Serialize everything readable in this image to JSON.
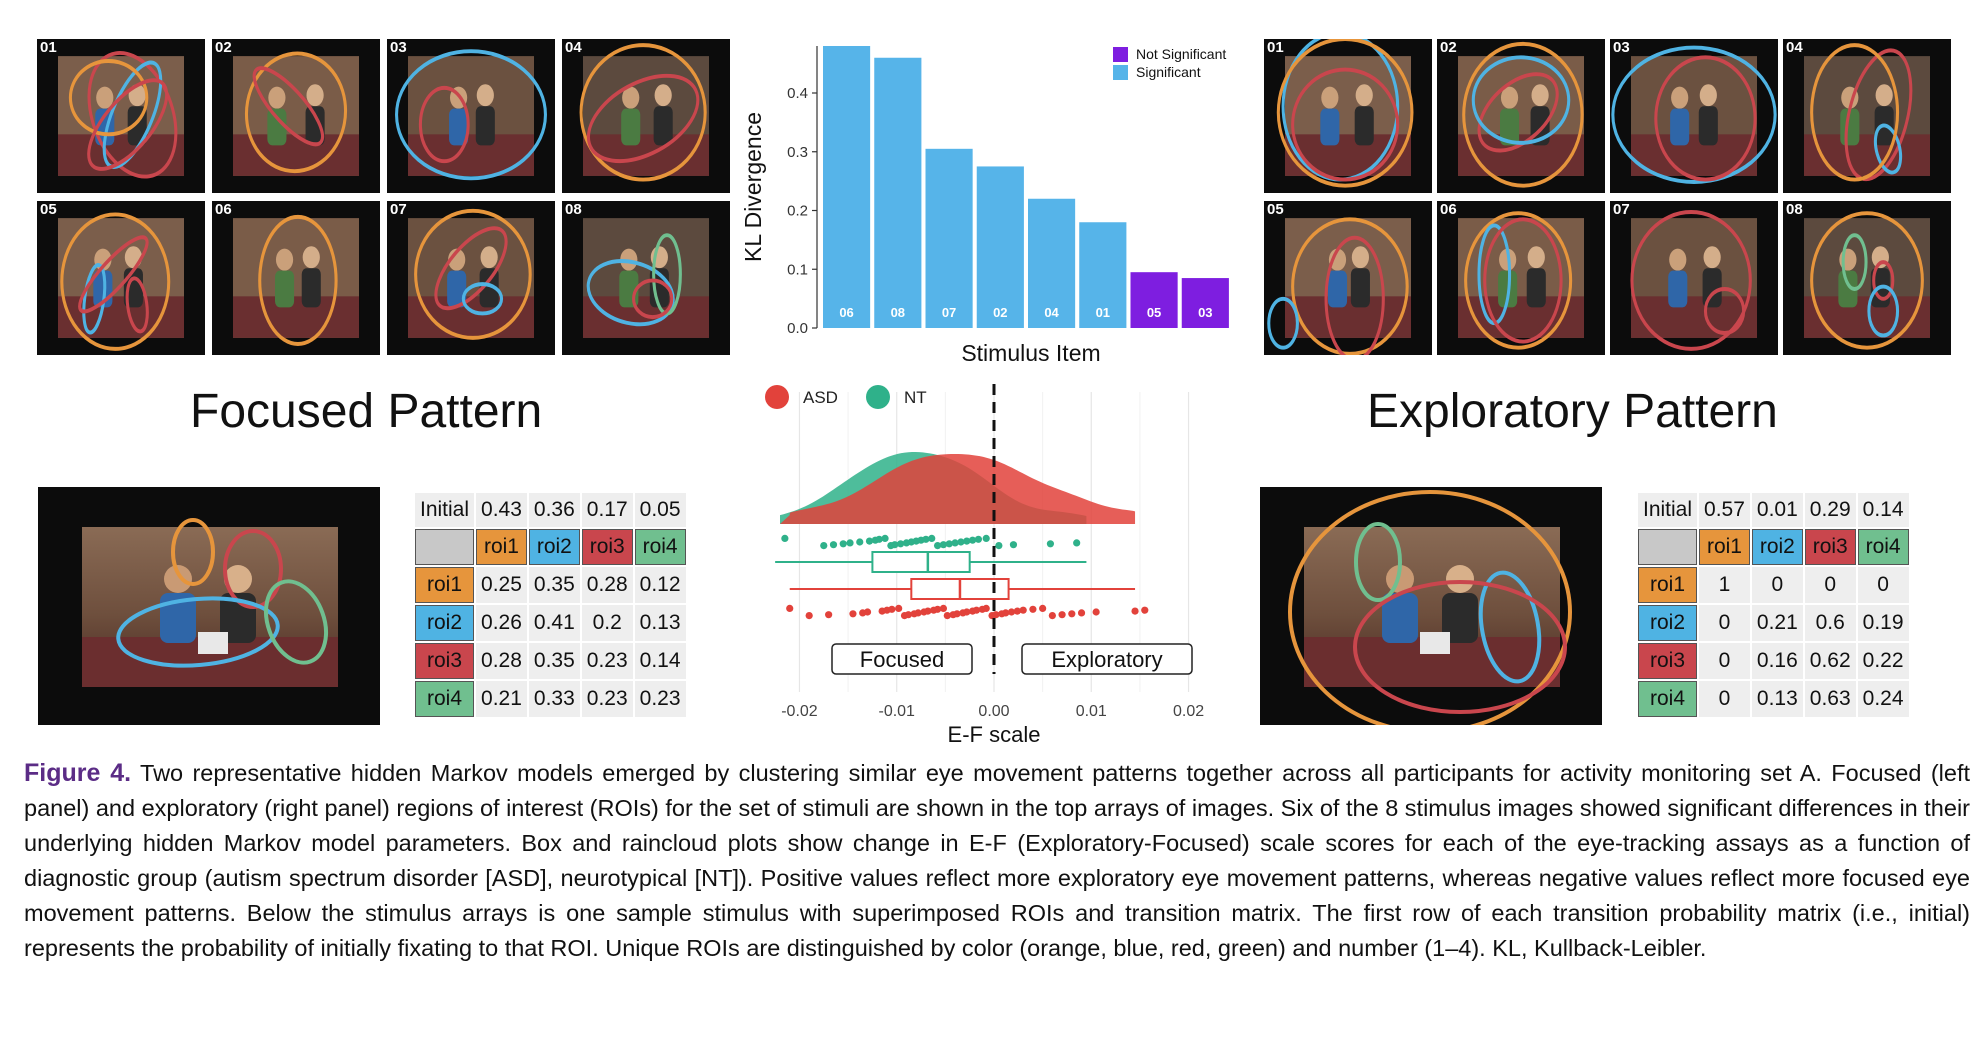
{
  "focused": {
    "title": "Focused Pattern",
    "thumbs": [
      {
        "num": "01",
        "cls": "a"
      },
      {
        "num": "02",
        "cls": "b"
      },
      {
        "num": "03",
        "cls": "c"
      },
      {
        "num": "04",
        "cls": "d"
      },
      {
        "num": "05",
        "cls": "e"
      },
      {
        "num": "06",
        "cls": "f"
      },
      {
        "num": "07",
        "cls": "g"
      },
      {
        "num": "08",
        "cls": "h"
      }
    ],
    "matrix": {
      "initial_label": "Initial",
      "initial": [
        "0.43",
        "0.36",
        "0.17",
        "0.05"
      ],
      "headers": [
        "roi1",
        "roi2",
        "roi3",
        "roi4"
      ],
      "rows": [
        {
          "label": "roi1",
          "values": [
            "0.25",
            "0.35",
            "0.28",
            "0.12"
          ]
        },
        {
          "label": "roi2",
          "values": [
            "0.26",
            "0.41",
            "0.2",
            "0.13"
          ]
        },
        {
          "label": "roi3",
          "values": [
            "0.28",
            "0.35",
            "0.23",
            "0.14"
          ]
        },
        {
          "label": "roi4",
          "values": [
            "0.21",
            "0.33",
            "0.23",
            "0.23"
          ]
        }
      ]
    }
  },
  "exploratory": {
    "title": "Exploratory Pattern",
    "thumbs": [
      {
        "num": "01",
        "cls": "a"
      },
      {
        "num": "02",
        "cls": "b"
      },
      {
        "num": "03",
        "cls": "c"
      },
      {
        "num": "04",
        "cls": "d"
      },
      {
        "num": "05",
        "cls": "e"
      },
      {
        "num": "06",
        "cls": "f"
      },
      {
        "num": "07",
        "cls": "g"
      },
      {
        "num": "08",
        "cls": "h"
      }
    ],
    "matrix": {
      "initial_label": "Initial",
      "initial": [
        "0.57",
        "0.01",
        "0.29",
        "0.14"
      ],
      "headers": [
        "roi1",
        "roi2",
        "roi3",
        "roi4"
      ],
      "rows": [
        {
          "label": "roi1",
          "values": [
            "1",
            "0",
            "0",
            "0"
          ]
        },
        {
          "label": "roi2",
          "values": [
            "0",
            "0.21",
            "0.6",
            "0.19"
          ]
        },
        {
          "label": "roi3",
          "values": [
            "0",
            "0.16",
            "0.62",
            "0.22"
          ]
        },
        {
          "label": "roi4",
          "values": [
            "0",
            "0.13",
            "0.63",
            "0.24"
          ]
        }
      ]
    }
  },
  "colors": {
    "roi1": "#e6953c",
    "roi2": "#4fb3e3",
    "roi3": "#c9464d",
    "roi4": "#70bf8f",
    "significant": "#56b4e9",
    "not_significant": "#7e1ee0",
    "asd": "#e2423b",
    "nt": "#2fb18a"
  },
  "chart_data": [
    {
      "type": "bar",
      "xlabel": "Stimulus Item",
      "ylabel": "KL Divergence",
      "ylim": [
        0,
        0.48
      ],
      "yticks": [
        "0.0",
        "0.1",
        "0.2",
        "0.3",
        "0.4"
      ],
      "yticks_values": [
        0,
        0.1,
        0.2,
        0.3,
        0.4
      ],
      "categories": [
        "06",
        "08",
        "07",
        "02",
        "04",
        "01",
        "05",
        "03"
      ],
      "values": [
        0.48,
        0.46,
        0.305,
        0.275,
        0.22,
        0.18,
        0.095,
        0.085
      ],
      "significant": [
        true,
        true,
        true,
        true,
        true,
        true,
        false,
        false
      ],
      "legend": {
        "position": "top-right",
        "items": [
          "Not Significant",
          "Significant"
        ]
      }
    },
    {
      "type": "raincloud",
      "xlabel": "E-F scale",
      "xlim": [
        -0.022,
        0.022
      ],
      "xticks": [
        "-0.02",
        "-0.01",
        "0.00",
        "0.01",
        "0.02"
      ],
      "xticks_values": [
        -0.02,
        -0.01,
        0,
        0.01,
        0.02
      ],
      "legend": {
        "position": "top-left",
        "items": [
          "ASD",
          "NT"
        ]
      },
      "annotations": [
        "Focused",
        "Exploratory"
      ],
      "groups": [
        {
          "name": "ASD",
          "box": {
            "min": -0.021,
            "q1": -0.0085,
            "median": -0.0035,
            "q3": 0.0015,
            "max": 0.0145
          },
          "points": [
            -0.021,
            -0.019,
            -0.017,
            -0.0145,
            -0.0135,
            -0.013,
            -0.0115,
            -0.011,
            -0.0105,
            -0.0098,
            -0.0092,
            -0.0088,
            -0.0082,
            -0.0078,
            -0.0072,
            -0.0068,
            -0.0062,
            -0.0058,
            -0.0052,
            -0.0048,
            -0.0042,
            -0.0038,
            -0.0032,
            -0.0028,
            -0.0022,
            -0.0018,
            -0.0012,
            -0.0008,
            -0.0002,
            0.0002,
            0.0008,
            0.0012,
            0.0018,
            0.0024,
            0.003,
            0.004,
            0.005,
            0.006,
            0.007,
            0.008,
            0.009,
            0.0105,
            0.0145,
            0.0155
          ]
        },
        {
          "name": "NT",
          "box": {
            "min": -0.0225,
            "q1": -0.0125,
            "median": -0.0068,
            "q3": -0.0025,
            "max": 0.0095
          },
          "points": [
            -0.0215,
            -0.0175,
            -0.0165,
            -0.0155,
            -0.0148,
            -0.0138,
            -0.0128,
            -0.0122,
            -0.0118,
            -0.0112,
            -0.0106,
            -0.0102,
            -0.0096,
            -0.009,
            -0.0085,
            -0.008,
            -0.0075,
            -0.007,
            -0.0064,
            -0.0058,
            -0.0052,
            -0.0046,
            -0.004,
            -0.0034,
            -0.0028,
            -0.0022,
            -0.0016,
            -0.0008,
            0.0005,
            0.002,
            0.0058,
            0.0085
          ]
        }
      ]
    }
  ],
  "caption": {
    "label": "Figure 4.",
    "text": " Two representative hidden Markov models emerged by clustering similar eye movement patterns together across all participants for activity monitoring set A. Focused (left panel) and exploratory (right panel) regions of interest (ROIs) for the set of stimuli are shown in the top arrays of images. Six of the 8 stimulus images showed significant differences in their underlying hidden Markov model parameters. Box and raincloud plots show change in E-F (Exploratory-Focused) scale scores for each of the eye-tracking assays as a function of diagnostic group (autism spectrum disorder [ASD], neurotypical [NT]). Positive values reflect more exploratory eye movement patterns, whereas negative values reflect more focused eye movement patterns. Below the stimulus arrays is one sample stimulus with superimposed ROIs and transition matrix. The first row of each transition probability matrix (i.e., initial) represents the probability of initially fixating to that ROI. Unique ROIs are distinguished by color (orange, blue, red, green) and number (1–4). KL, Kullback-Leibler."
  }
}
